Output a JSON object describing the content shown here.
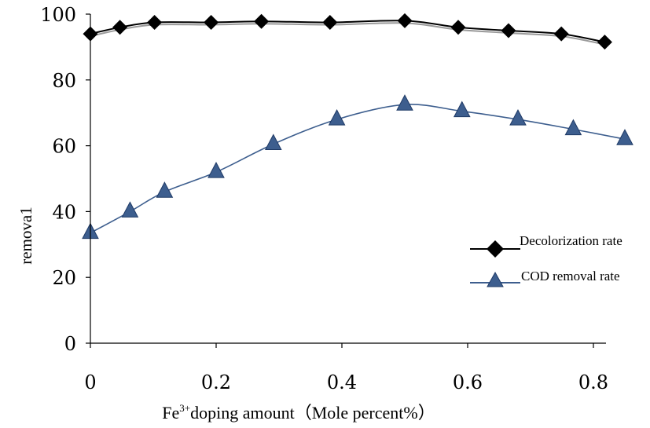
{
  "chart_data": {
    "type": "line",
    "title": "",
    "xlabel_prefix": "Fe",
    "xlabel_sup": "3+",
    "xlabel_suffix": "doping amount（Mole percent%）",
    "ylabel": "remova1",
    "xlim": [
      0,
      0.82
    ],
    "ylim": [
      0,
      100
    ],
    "x_ticks": [
      {
        "value": 0,
        "label": "0"
      },
      {
        "value": 0.2,
        "label": "0.2"
      },
      {
        "value": 0.4,
        "label": "0.4"
      },
      {
        "value": 0.6,
        "label": "0.6"
      },
      {
        "value": 0.8,
        "label": "0.8"
      }
    ],
    "y_ticks": [
      {
        "value": 0,
        "label": "0"
      },
      {
        "value": 20,
        "label": "20"
      },
      {
        "value": 40,
        "label": "40"
      },
      {
        "value": 60,
        "label": "60"
      },
      {
        "value": 80,
        "label": "80"
      },
      {
        "value": 100,
        "label": "100"
      }
    ],
    "legend_position": "right",
    "series": [
      {
        "name": "Decolorization rate",
        "marker": "diamond",
        "color": "#000000",
        "x": [
          0,
          0.047,
          0.102,
          0.192,
          0.272,
          0.381,
          0.5,
          0.585,
          0.665,
          0.749,
          0.818
        ],
        "y": [
          94.0,
          96.0,
          97.5,
          97.5,
          97.8,
          97.5,
          98.0,
          96.0,
          95.0,
          94.0,
          91.5
        ]
      },
      {
        "name": "COD removal rate",
        "marker": "triangle",
        "color": "#3D5E8E",
        "x": [
          0,
          0.063,
          0.118,
          0.2,
          0.291,
          0.392,
          0.5,
          0.591,
          0.68,
          0.768,
          0.85
        ],
        "y": [
          33.5,
          40.0,
          46.0,
          52.0,
          60.5,
          68.0,
          72.5,
          70.5,
          68.0,
          65.0,
          62.0
        ]
      }
    ]
  }
}
